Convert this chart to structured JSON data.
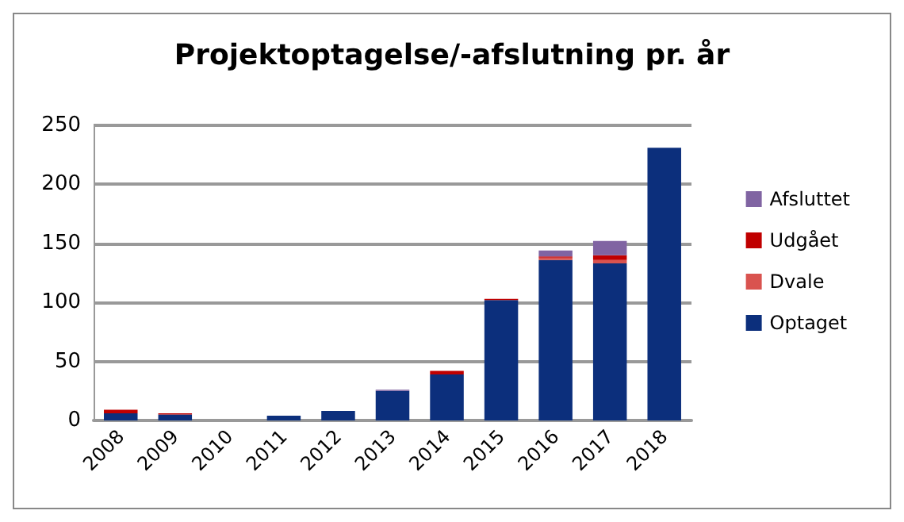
{
  "chart_data": {
    "type": "bar",
    "title": "Projektoptagelse/-afslutning pr. år",
    "stacked": true,
    "categories": [
      "2008",
      "2009",
      "2010",
      "2011",
      "2012",
      "2013",
      "2014",
      "2015",
      "2016",
      "2017",
      "2018"
    ],
    "series": [
      {
        "name": "Optaget",
        "color": "#0c2f7c",
        "values": [
          6,
          5,
          0,
          4,
          8,
          25,
          39,
          102,
          136,
          133,
          231
        ]
      },
      {
        "name": "Dvale",
        "color": "#d9534f",
        "values": [
          0,
          0,
          0,
          0,
          0,
          0,
          0,
          0,
          2,
          3,
          0
        ]
      },
      {
        "name": "Udgået",
        "color": "#c00000",
        "values": [
          3,
          1,
          0,
          0,
          0,
          0,
          3,
          1,
          1,
          4,
          0
        ]
      },
      {
        "name": "Afsluttet",
        "color": "#8064a2",
        "values": [
          0,
          0,
          0,
          0,
          0,
          1,
          0,
          0,
          5,
          12,
          0
        ]
      }
    ],
    "ylim": [
      0,
      250
    ],
    "yticks": [
      0,
      50,
      100,
      150,
      200,
      250
    ],
    "grid": "y",
    "legend": "right"
  }
}
